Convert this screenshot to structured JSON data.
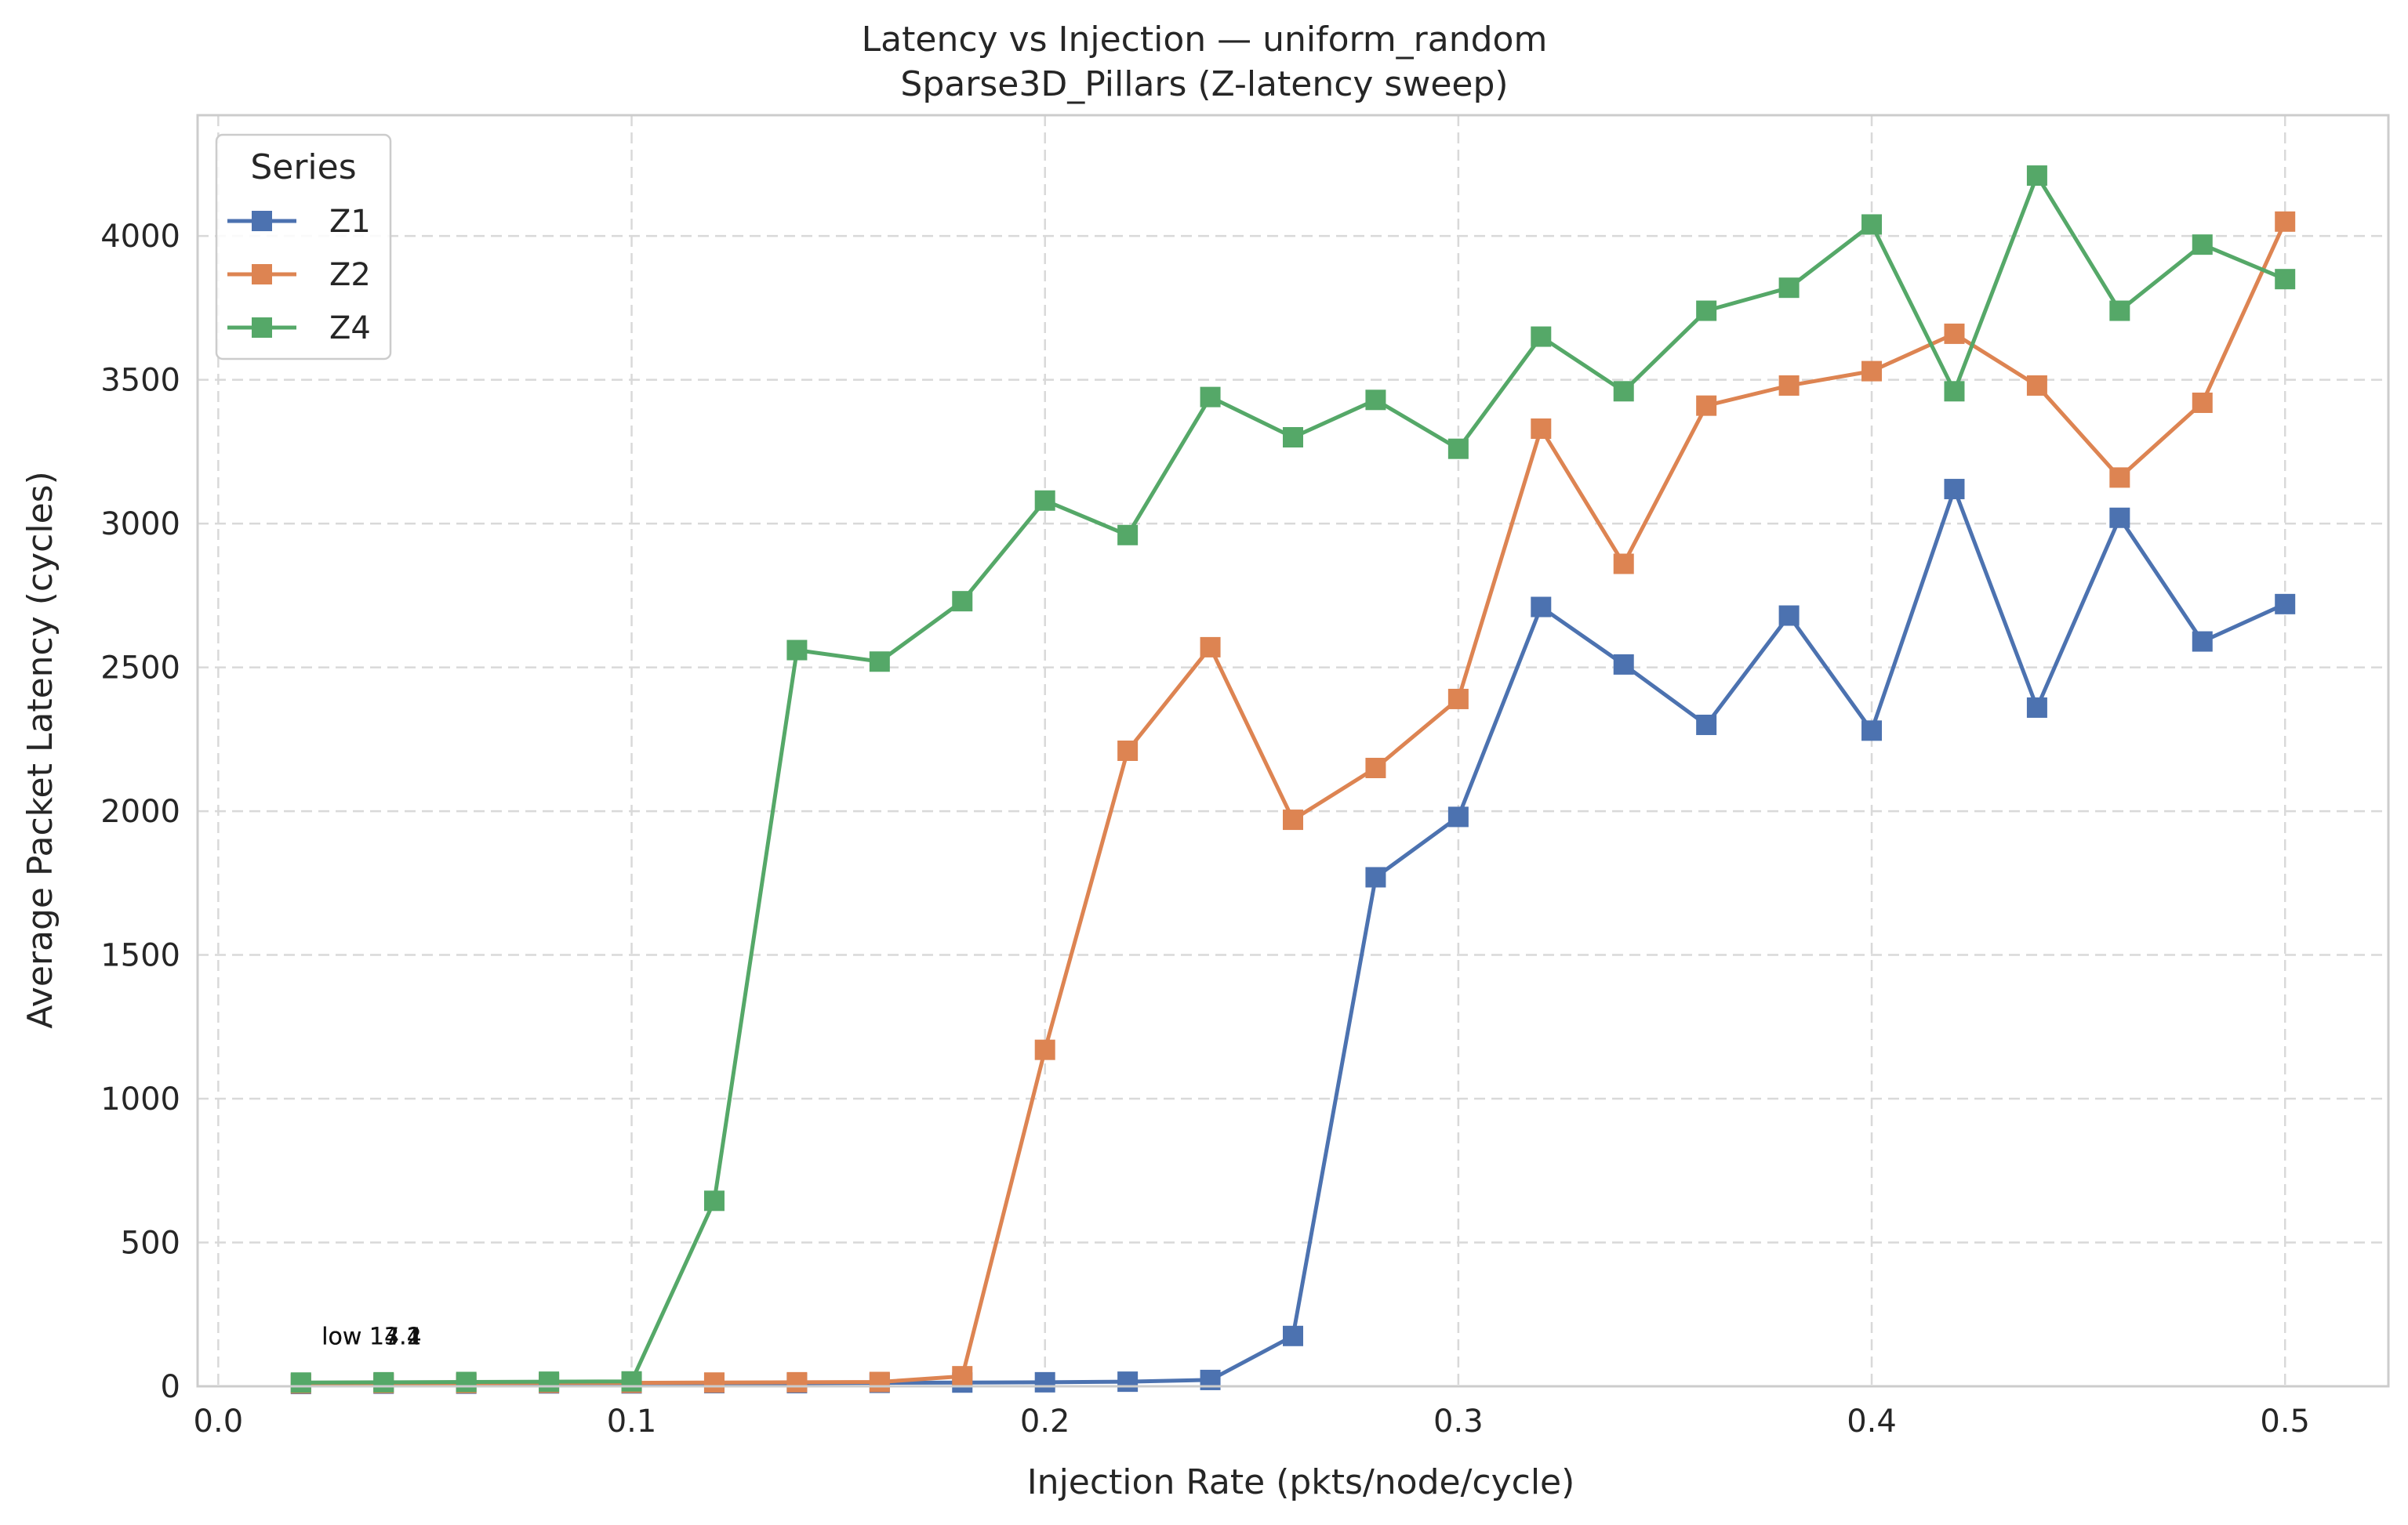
{
  "chart_data": {
    "type": "line",
    "title": "Latency vs Injection — uniform_random",
    "subtitle": "Sparse3D_Pillars (Z-latency sweep)",
    "xlabel": "Injection Rate (pkts/node/cycle)",
    "ylabel": "Average Packet Latency (cycles)",
    "xlim": [
      -0.005,
      0.525
    ],
    "ylim": [
      0,
      4420
    ],
    "xticks": [
      0.0,
      0.1,
      0.2,
      0.3,
      0.4,
      0.5
    ],
    "xtick_labels": [
      "0.0",
      "0.1",
      "0.2",
      "0.3",
      "0.4",
      "0.5"
    ],
    "yticks": [
      0,
      500,
      1000,
      1500,
      2000,
      2500,
      3000,
      3500,
      4000
    ],
    "ytick_labels": [
      "0",
      "500",
      "1000",
      "1500",
      "2000",
      "2500",
      "3000",
      "3500",
      "4000"
    ],
    "grid": true,
    "legend": {
      "title": "Series",
      "placement": "top-left"
    },
    "x": [
      0.02,
      0.04,
      0.06,
      0.08,
      0.1,
      0.12,
      0.14,
      0.16,
      0.18,
      0.2,
      0.22,
      0.24,
      0.26,
      0.28,
      0.3,
      0.32,
      0.34,
      0.36,
      0.38,
      0.4,
      0.42,
      0.44,
      0.46,
      0.48,
      0.5
    ],
    "series": [
      {
        "name": "Z1",
        "color": "#4c72b0",
        "marker": "square",
        "values": [
          8,
          9,
          9,
          10,
          10,
          11,
          11,
          12,
          13,
          14,
          16,
          22,
          175,
          1770,
          1980,
          2710,
          2510,
          2300,
          2680,
          2280,
          3120,
          2360,
          3020,
          2590,
          2720
        ]
      },
      {
        "name": "Z2",
        "color": "#dd8452",
        "marker": "square",
        "values": [
          10,
          11,
          11,
          12,
          12,
          13,
          14,
          15,
          35,
          1170,
          2210,
          2570,
          1970,
          2150,
          2390,
          3330,
          2860,
          3410,
          3480,
          3530,
          3660,
          3480,
          3160,
          3420,
          4050
        ]
      },
      {
        "name": "Z4",
        "color": "#55a868",
        "marker": "square",
        "values": [
          13,
          14,
          15,
          16,
          17,
          645,
          2560,
          2520,
          2730,
          3080,
          2960,
          3440,
          3300,
          3430,
          3260,
          3650,
          3460,
          3740,
          3820,
          4040,
          3460,
          4210,
          3740,
          3970,
          3850
        ]
      }
    ],
    "annotations": [
      {
        "text": "low 13.4",
        "x": 0.025,
        "y": 80
      },
      {
        "text": "low 14.1",
        "x": 0.025,
        "y": 80
      },
      {
        "text": "low 17.2",
        "x": 0.025,
        "y": 80
      }
    ]
  }
}
